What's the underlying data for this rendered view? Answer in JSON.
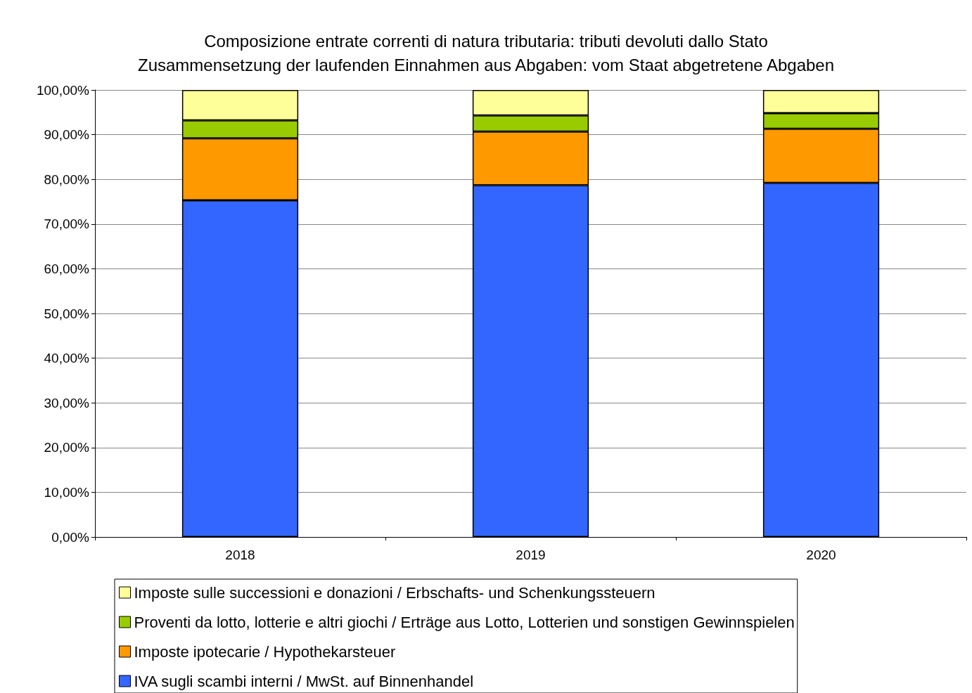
{
  "chart_data": {
    "type": "bar",
    "title": "Composizione entrate correnti di natura tributaria: tributi devoluti dallo Stato\nZusammensetzung der laufenden Einnahmen aus Abgaben: vom Staat abgetretene Abgaben",
    "categories": [
      "2018",
      "2019",
      "2020"
    ],
    "stacked": true,
    "series": [
      {
        "name": "IVA sugli scambi interni / MwSt. auf Binnenhandel",
        "color": "#3366ff",
        "values": [
          75.3,
          78.7,
          79.2
        ]
      },
      {
        "name": "Imposte ipotecarie / Hypothekarsteuer",
        "color": "#ff9900",
        "values": [
          13.9,
          12.0,
          12.1
        ]
      },
      {
        "name": "Proventi da lotto, lotterie e altri giochi / Erträge aus Lotto, Lotterien und sonstigen Gewinnspielen",
        "color": "#99cc00",
        "values": [
          4.0,
          3.6,
          3.5
        ]
      },
      {
        "name": "Imposte sulle successioni e donazioni / Erbschafts- und Schenkungssteuern",
        "color": "#ffff99",
        "values": [
          6.8,
          5.7,
          5.2
        ]
      }
    ],
    "ylim": [
      0,
      100
    ],
    "yticks": [
      {
        "value": 0,
        "label": "0,00%"
      },
      {
        "value": 10,
        "label": "10,00%"
      },
      {
        "value": 20,
        "label": "20,00%"
      },
      {
        "value": 30,
        "label": "30,00%"
      },
      {
        "value": 40,
        "label": "40,00%"
      },
      {
        "value": 50,
        "label": "50,00%"
      },
      {
        "value": 60,
        "label": "60,00%"
      },
      {
        "value": 70,
        "label": "70,00%"
      },
      {
        "value": 80,
        "label": "80,00%"
      },
      {
        "value": 90,
        "label": "90,00%"
      },
      {
        "value": 100,
        "label": "100,00%"
      }
    ],
    "grid": "y",
    "legend": "bottom"
  }
}
